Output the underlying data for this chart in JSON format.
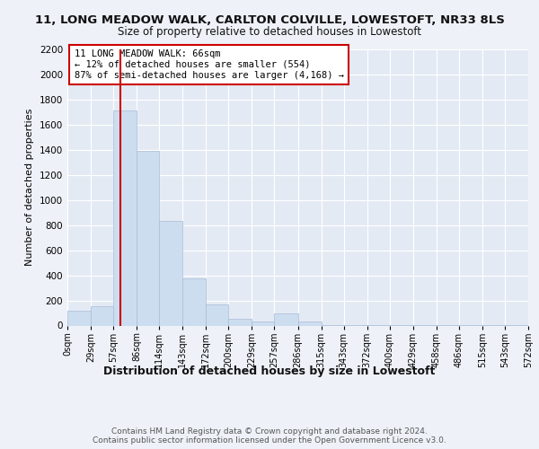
{
  "title1": "11, LONG MEADOW WALK, CARLTON COLVILLE, LOWESTOFT, NR33 8LS",
  "title2": "Size of property relative to detached houses in Lowestoft",
  "xlabel": "Distribution of detached houses by size in Lowestoft",
  "ylabel": "Number of detached properties",
  "footer": "Contains HM Land Registry data © Crown copyright and database right 2024.\nContains public sector information licensed under the Open Government Licence v3.0.",
  "bin_edges": [
    0,
    29,
    57,
    86,
    114,
    143,
    172,
    200,
    229,
    257,
    286,
    315,
    343,
    372,
    400,
    429,
    458,
    486,
    515,
    543,
    572
  ],
  "bin_labels": [
    "0sqm",
    "29sqm",
    "57sqm",
    "86sqm",
    "114sqm",
    "143sqm",
    "172sqm",
    "200sqm",
    "229sqm",
    "257sqm",
    "286sqm",
    "315sqm",
    "343sqm",
    "372sqm",
    "400sqm",
    "429sqm",
    "458sqm",
    "486sqm",
    "515sqm",
    "543sqm",
    "572sqm"
  ],
  "counts": [
    120,
    155,
    1710,
    1390,
    830,
    375,
    165,
    55,
    30,
    100,
    30,
    5,
    5,
    5,
    5,
    5,
    5,
    5,
    5,
    5
  ],
  "bar_color": "#ccddf0",
  "bar_edgecolor": "#aabbd8",
  "vline_x": 66,
  "vline_color": "#cc0000",
  "ylim": [
    0,
    2200
  ],
  "yticks": [
    0,
    200,
    400,
    600,
    800,
    1000,
    1200,
    1400,
    1600,
    1800,
    2000,
    2200
  ],
  "annotation_text": "11 LONG MEADOW WALK: 66sqm\n← 12% of detached houses are smaller (554)\n87% of semi-detached houses are larger (4,168) →",
  "annotation_box_edgecolor": "#cc0000",
  "bg_color": "#eef2f8",
  "plot_bg_color": "#e4eaf4",
  "grid_color": "#ffffff"
}
